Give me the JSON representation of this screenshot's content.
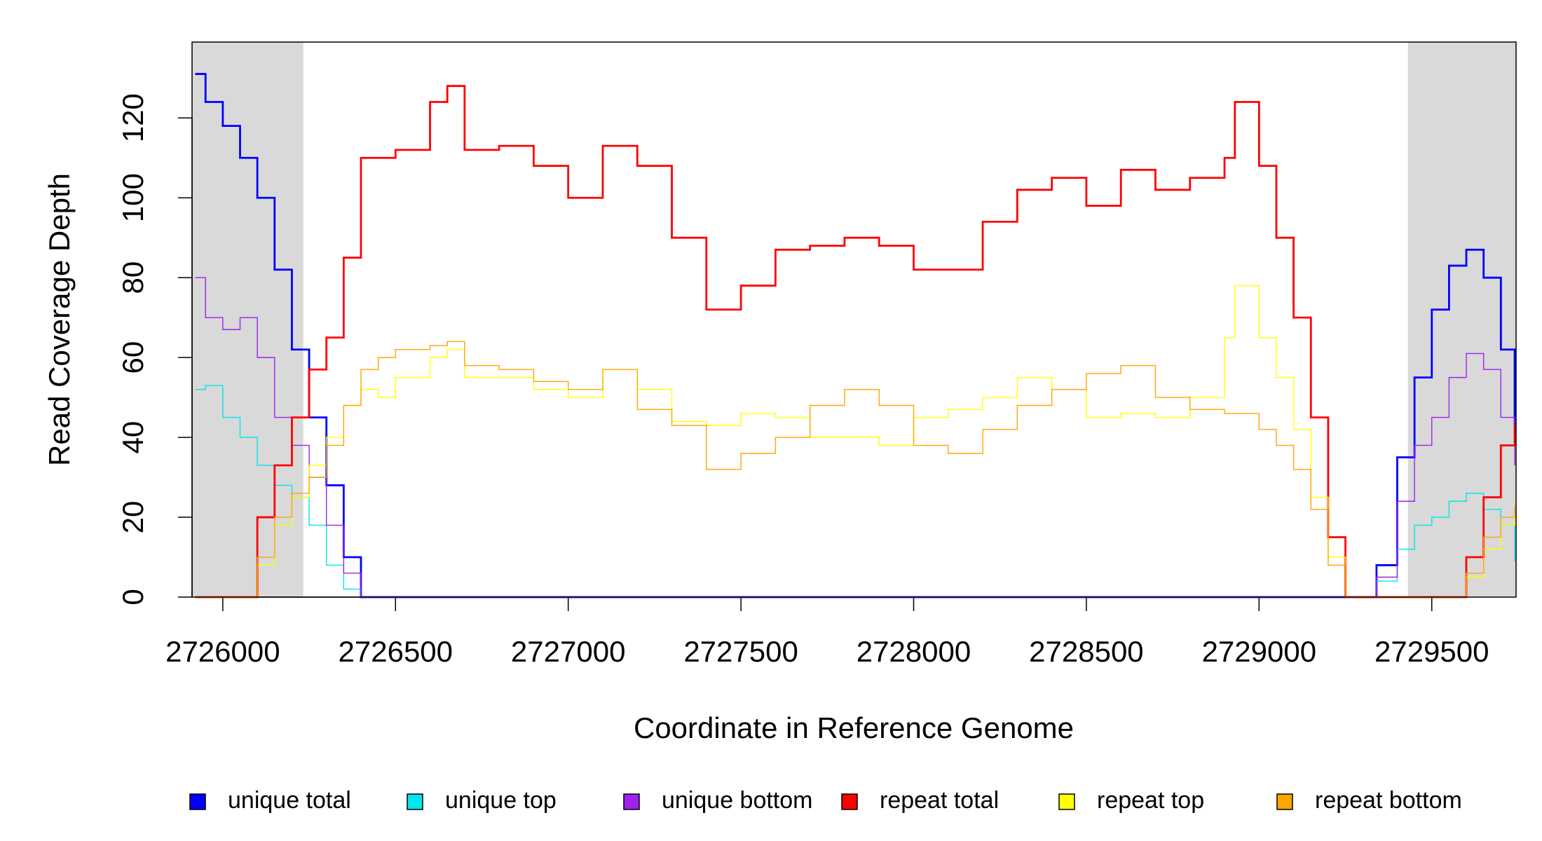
{
  "chart_data": {
    "type": "line",
    "step": true,
    "x_label": "Coordinate in Reference Genome",
    "y_label": "Read Coverage Depth",
    "xlim": [
      2725911,
      2729744
    ],
    "ylim": [
      0,
      139
    ],
    "xticks": [
      2726000,
      2726500,
      2727000,
      2727500,
      2728000,
      2728500,
      2729000,
      2729500
    ],
    "yticks": [
      0,
      20,
      40,
      60,
      80,
      100,
      120
    ],
    "shaded_regions": [
      [
        2725911,
        2726233
      ],
      [
        2729431,
        2729744
      ]
    ],
    "shade_color": "#d9d9d9",
    "legend": "bottom",
    "x": [
      2725920,
      2725950,
      2726000,
      2726050,
      2726100,
      2726150,
      2726200,
      2726250,
      2726300,
      2726350,
      2726400,
      2726450,
      2726500,
      2726600,
      2726650,
      2726700,
      2726800,
      2726900,
      2727000,
      2727100,
      2727200,
      2727300,
      2727400,
      2727500,
      2727600,
      2727700,
      2727800,
      2727900,
      2728000,
      2728100,
      2728200,
      2728300,
      2728400,
      2728500,
      2728600,
      2728700,
      2728800,
      2728900,
      2728930,
      2729000,
      2729050,
      2729100,
      2729150,
      2729200,
      2729250,
      2729300,
      2729340,
      2729400,
      2729450,
      2729500,
      2729550,
      2729600,
      2729650,
      2729700,
      2729740
    ],
    "series": [
      {
        "name": "unique total",
        "color": "#0000ff",
        "width": 2,
        "values": [
          131,
          124,
          118,
          110,
          100,
          82,
          62,
          45,
          28,
          10,
          0,
          0,
          0,
          0,
          0,
          0,
          0,
          0,
          0,
          0,
          0,
          0,
          0,
          0,
          0,
          0,
          0,
          0,
          0,
          0,
          0,
          0,
          0,
          0,
          0,
          0,
          0,
          0,
          0,
          0,
          0,
          0,
          0,
          0,
          0,
          0,
          8,
          35,
          55,
          72,
          83,
          87,
          80,
          62,
          43
        ]
      },
      {
        "name": "unique top",
        "color": "#00e5ee",
        "width": 1,
        "values": [
          52,
          53,
          45,
          40,
          33,
          28,
          25,
          18,
          8,
          2,
          0,
          0,
          0,
          0,
          0,
          0,
          0,
          0,
          0,
          0,
          0,
          0,
          0,
          0,
          0,
          0,
          0,
          0,
          0,
          0,
          0,
          0,
          0,
          0,
          0,
          0,
          0,
          0,
          0,
          0,
          0,
          0,
          0,
          0,
          0,
          0,
          4,
          12,
          18,
          20,
          24,
          26,
          22,
          18,
          9
        ]
      },
      {
        "name": "unique bottom",
        "color": "#a020f0",
        "width": 1,
        "values": [
          80,
          70,
          67,
          70,
          60,
          45,
          38,
          30,
          18,
          6,
          0,
          0,
          0,
          0,
          0,
          0,
          0,
          0,
          0,
          0,
          0,
          0,
          0,
          0,
          0,
          0,
          0,
          0,
          0,
          0,
          0,
          0,
          0,
          0,
          0,
          0,
          0,
          0,
          0,
          0,
          0,
          0,
          0,
          0,
          0,
          0,
          5,
          24,
          38,
          45,
          55,
          61,
          57,
          45,
          33
        ]
      },
      {
        "name": "repeat total",
        "color": "#ff0000",
        "width": 2,
        "values": [
          0,
          0,
          0,
          0,
          20,
          33,
          45,
          57,
          65,
          85,
          110,
          110,
          112,
          124,
          128,
          112,
          113,
          108,
          100,
          113,
          108,
          90,
          72,
          78,
          87,
          88,
          90,
          88,
          82,
          82,
          94,
          102,
          105,
          98,
          107,
          102,
          105,
          110,
          124,
          108,
          90,
          70,
          45,
          15,
          0,
          0,
          0,
          0,
          0,
          0,
          0,
          10,
          25,
          38,
          43
        ]
      },
      {
        "name": "repeat top",
        "color": "#ffff00",
        "width": 1,
        "values": [
          0,
          0,
          0,
          0,
          8,
          18,
          25,
          33,
          40,
          48,
          52,
          50,
          55,
          60,
          62,
          55,
          55,
          52,
          50,
          57,
          52,
          44,
          43,
          46,
          45,
          40,
          40,
          38,
          45,
          47,
          50,
          55,
          52,
          45,
          46,
          45,
          50,
          65,
          78,
          65,
          55,
          42,
          25,
          10,
          0,
          0,
          0,
          0,
          0,
          0,
          0,
          5,
          12,
          18,
          21
        ]
      },
      {
        "name": "repeat bottom",
        "color": "#ffa500",
        "width": 1,
        "values": [
          0,
          0,
          0,
          0,
          10,
          20,
          26,
          30,
          38,
          48,
          57,
          60,
          62,
          63,
          64,
          58,
          57,
          54,
          52,
          57,
          47,
          43,
          32,
          36,
          40,
          48,
          52,
          48,
          38,
          36,
          42,
          48,
          52,
          56,
          58,
          50,
          47,
          46,
          46,
          42,
          38,
          32,
          22,
          8,
          0,
          0,
          0,
          0,
          0,
          0,
          0,
          6,
          15,
          20,
          23
        ]
      }
    ]
  }
}
